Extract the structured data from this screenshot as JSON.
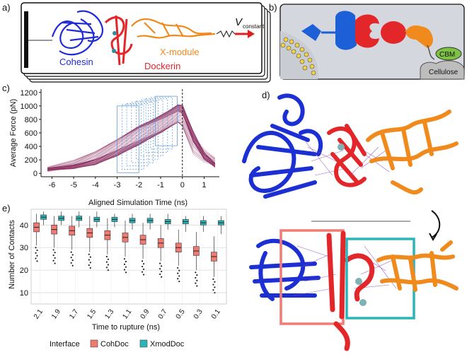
{
  "panels": {
    "a": {
      "letter": "a)",
      "labels": {
        "cohesin": "Cohesin",
        "dockerin": "Dockerin",
        "xmodule": "X-module",
        "v": "V",
        "v_sub": "constant"
      },
      "colors": {
        "cohesin": "#1f2bd6",
        "dockerin": "#e3262a",
        "xmodule": "#f08a1c",
        "arrow": "#e02020"
      }
    },
    "b": {
      "letter": "b)",
      "labels": {
        "cbm": "CBM",
        "cellulose": "Cellulose"
      },
      "colors": {
        "bg": "#d4d7dd",
        "cbm": "#7dc242",
        "cellulose": "#bdbdbd",
        "blue": "#1c5fd6",
        "red": "#e3262a",
        "orange": "#f08a1c"
      }
    },
    "c": {
      "letter": "c)",
      "chart_data": {
        "type": "line",
        "title": "",
        "xlabel": "Aligned Simulation Time (ns)",
        "ylabel": "Average Force (pN)",
        "xlim": [
          -6.5,
          1.7
        ],
        "ylim": [
          -50,
          1250
        ],
        "xticks": [
          -6,
          -5,
          -4,
          -3,
          -2,
          -1,
          0,
          1
        ],
        "yticks": [
          0,
          200,
          400,
          600,
          800,
          1000,
          1200
        ],
        "ytick_labels": [
          "0",
          "200",
          "400",
          "600",
          "800",
          "1000",
          "1200"
        ],
        "xtick_labels": [
          "-6",
          "-5",
          "-4",
          "-3",
          "-2",
          "-1",
          "0",
          "1"
        ],
        "envelope": {
          "x": [
            -6.2,
            -5,
            -4,
            -3,
            -2,
            -1,
            -0.2,
            0,
            0.5,
            1,
            1.5
          ],
          "upper": [
            120,
            200,
            320,
            500,
            700,
            880,
            1060,
            1100,
            750,
            420,
            230
          ],
          "mean": [
            40,
            110,
            220,
            380,
            560,
            760,
            920,
            950,
            520,
            260,
            140
          ],
          "lower": [
            0,
            20,
            80,
            220,
            400,
            600,
            760,
            700,
            280,
            100,
            40
          ]
        },
        "rupture_line_x": 0,
        "boxes_note": "stacked window outlines from -3 to 0 ns",
        "colors": {
          "lines": "#6b1a57",
          "lines_light": "#d36a82",
          "boxes": "#4a8fd6",
          "vline": "#222222"
        }
      }
    },
    "d": {
      "letter": "d)",
      "colors": {
        "blue": "#1b2fd3",
        "red": "#e3262a",
        "orange": "#f08a1c",
        "contact": "#8a3bbf",
        "box_red": "#ef7b73",
        "box_teal": "#2bb5b8"
      }
    },
    "e": {
      "letter": "e)",
      "chart_data": {
        "type": "box",
        "xlabel": "Time to rupture (ns)",
        "ylabel": "Number of Contacts",
        "categories": [
          "2.1",
          "1.9",
          "1.7",
          "1.5",
          "1.3",
          "1.1",
          "0.9",
          "0.7",
          "0.5",
          "0.3",
          "0.1"
        ],
        "ylim": [
          5,
          47
        ],
        "yticks": [
          10,
          20,
          30,
          40
        ],
        "series": [
          {
            "name": "CohDoc",
            "color": "#f07a72",
            "median": [
              39,
              38,
              37.5,
              36.5,
              35.5,
              34.5,
              33.5,
              32,
              30,
              28.5,
              26
            ],
            "q1": [
              37,
              36,
              35.5,
              34.5,
              33.5,
              32.5,
              31.5,
              30,
              28,
              26.5,
              24
            ],
            "q3": [
              41,
              40,
              39.5,
              38.5,
              37.5,
              36.5,
              35.5,
              34,
              32,
              30.5,
              28
            ],
            "wlo": [
              31,
              30,
              29,
              28,
              27,
              26,
              25,
              24,
              22,
              20,
              17
            ],
            "whi": [
              45,
              44,
              44,
              44,
              43,
              42,
              41,
              40,
              38,
              37,
              35
            ]
          },
          {
            "name": "XmodDoc",
            "color": "#2bb5b8",
            "median": [
              43.5,
              43,
              43,
              42.5,
              42.5,
              42,
              42,
              41.5,
              41.5,
              41,
              41
            ],
            "q1": [
              42.5,
              42,
              42,
              41.5,
              41.5,
              41,
              41,
              40.5,
              40.5,
              40,
              40
            ],
            "q3": [
              44.5,
              44,
              44,
              43.5,
              43.5,
              43,
              43,
              42.5,
              42.5,
              42,
              42
            ],
            "wlo": [
              40,
              40,
              39,
              39,
              39,
              38,
              38,
              38,
              37,
              37,
              36
            ],
            "whi": [
              46,
              46,
              46,
              46,
              45,
              45,
              45,
              45,
              44,
              44,
              44
            ]
          }
        ],
        "legend": {
          "title": "Interface",
          "items": [
            "CohDoc",
            "XmodDoc"
          ]
        }
      }
    }
  }
}
